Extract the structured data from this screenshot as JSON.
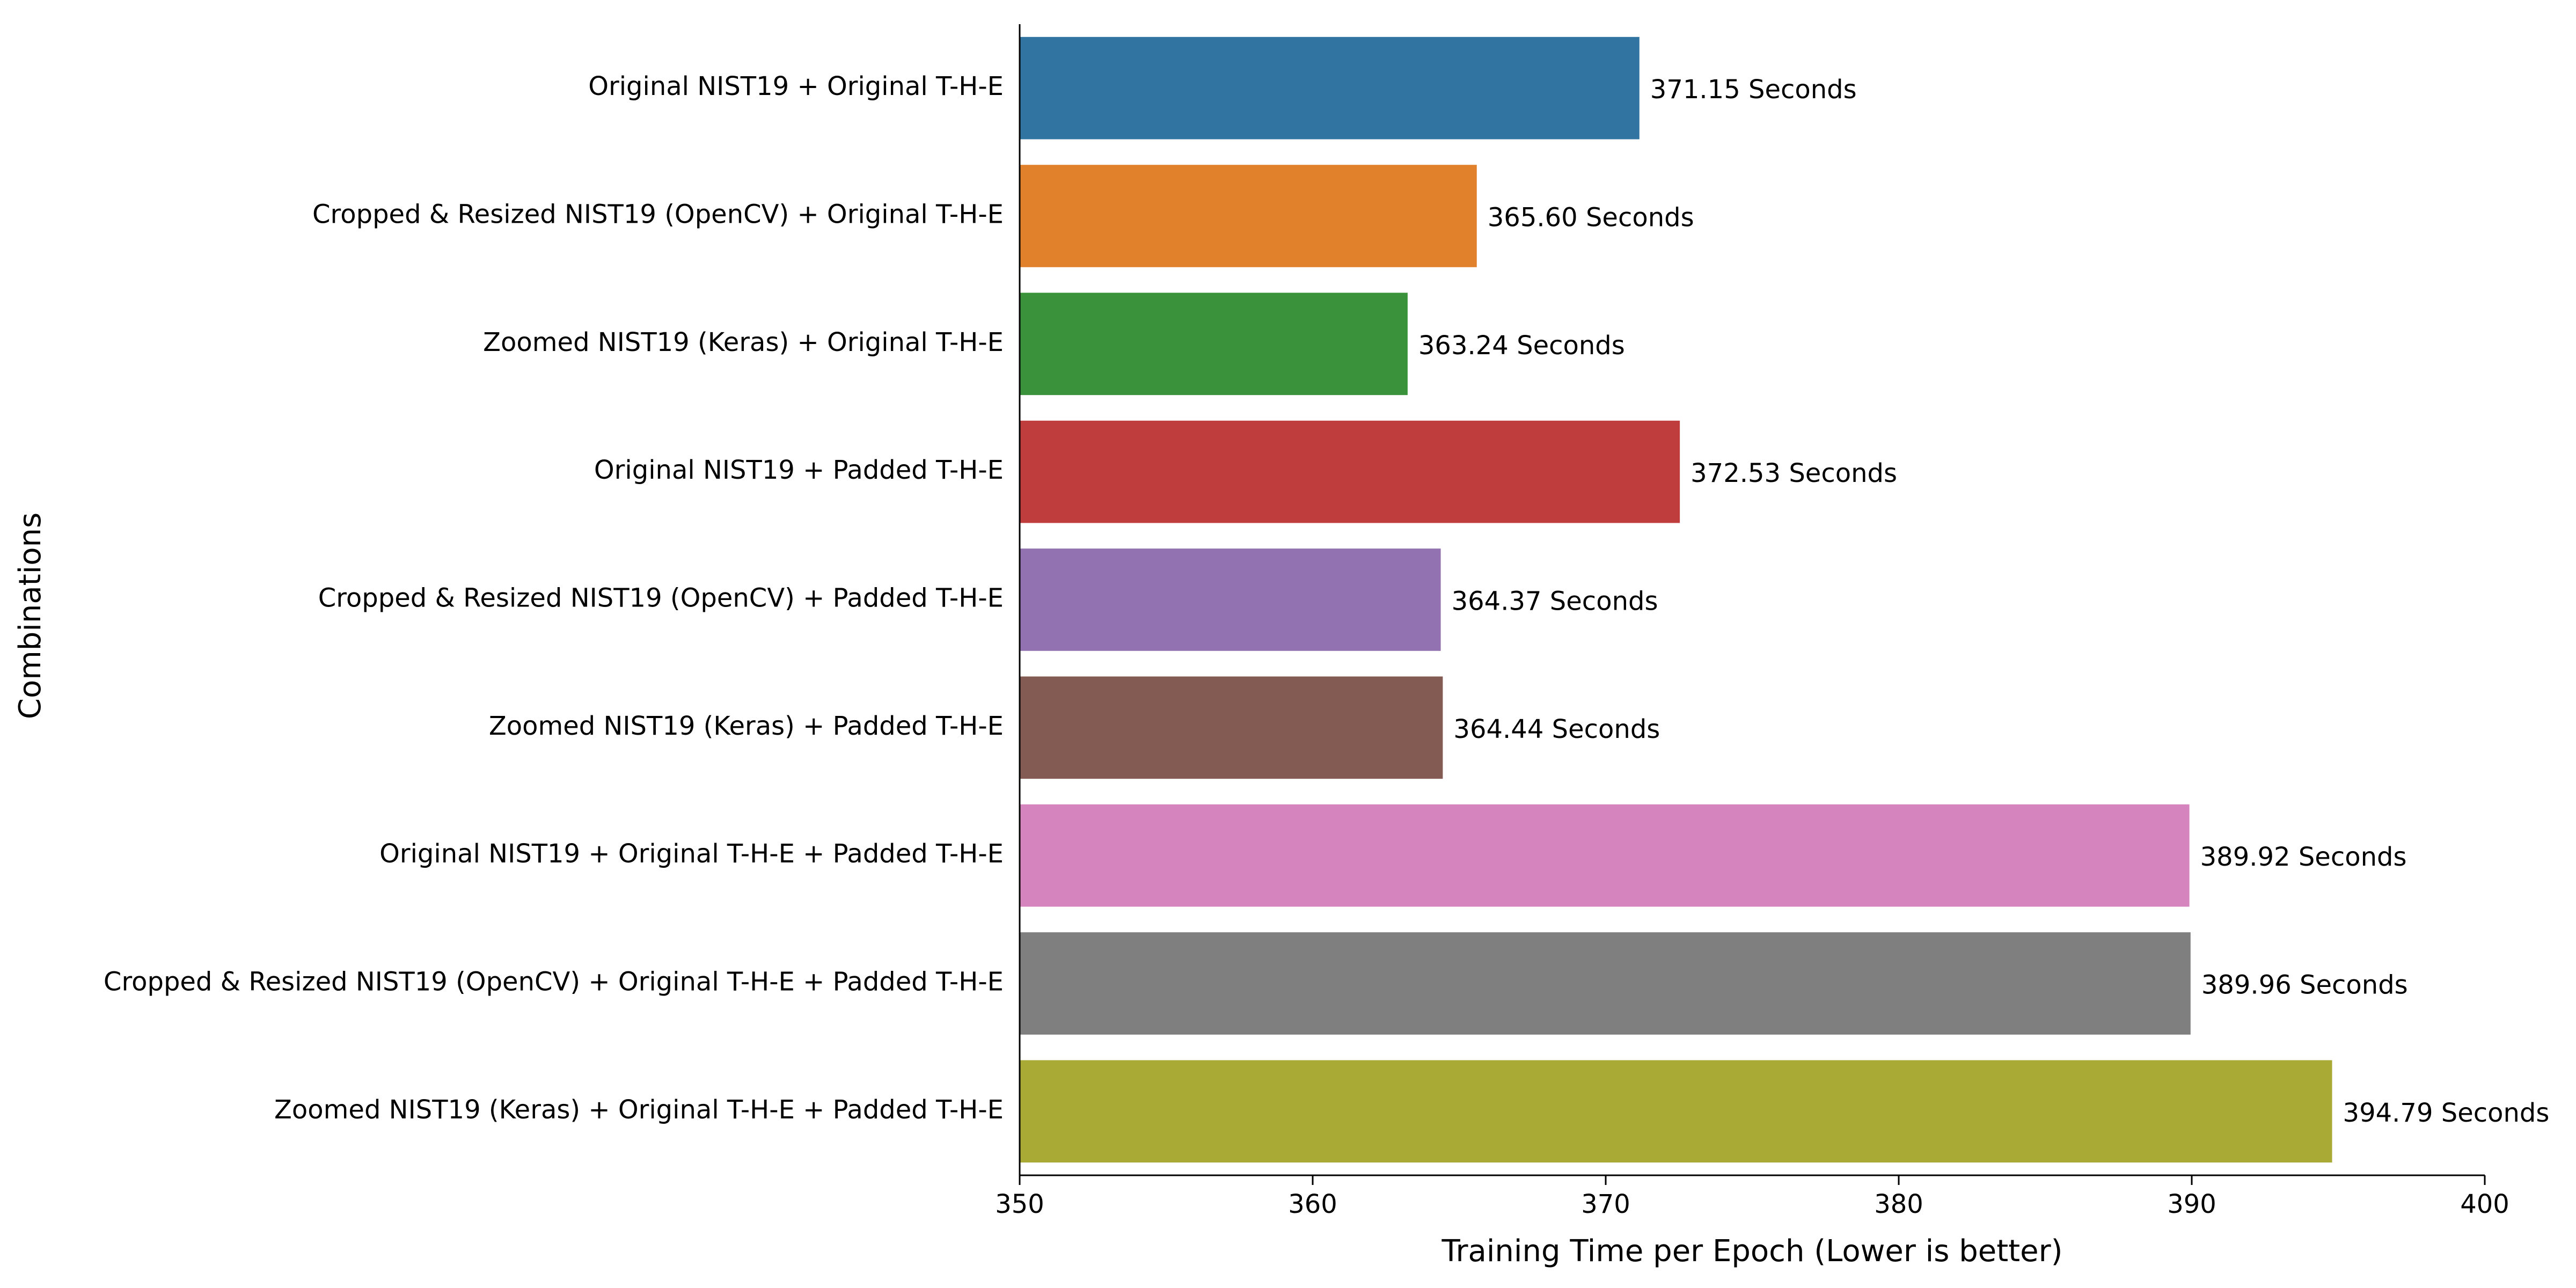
{
  "chart_data": {
    "type": "bar",
    "orientation": "horizontal",
    "title": "",
    "xlabel": "Training Time per Epoch (Lower is better)",
    "ylabel": "Combinations",
    "xlim": [
      350,
      400
    ],
    "xticks": [
      "350",
      "360",
      "370",
      "380",
      "390",
      "400"
    ],
    "grid": false,
    "categories": [
      "Original NIST19 + Original T-H-E",
      "Cropped & Resized NIST19 (OpenCV) + Original T-H-E",
      "Zoomed NIST19 (Keras) + Original T-H-E",
      "Original NIST19 + Padded T-H-E",
      "Cropped & Resized NIST19 (OpenCV) + Padded T-H-E",
      "Zoomed NIST19 (Keras) + Padded T-H-E",
      "Original NIST19 + Original T-H-E + Padded T-H-E",
      "Cropped & Resized NIST19 (OpenCV) + Original T-H-E + Padded T-H-E",
      "Zoomed NIST19 (Keras) + Original T-H-E + Padded T-H-E"
    ],
    "values": [
      371.15,
      365.6,
      363.24,
      372.53,
      364.37,
      364.44,
      389.92,
      389.96,
      394.79
    ],
    "data_labels": [
      "371.15 Seconds",
      "365.60 Seconds",
      "363.24 Seconds",
      "372.53 Seconds",
      "364.37 Seconds",
      "364.44 Seconds",
      "389.92 Seconds",
      "389.96 Seconds",
      "394.79 Seconds"
    ],
    "colors": [
      "#3274a1",
      "#e1812c",
      "#3a923a",
      "#c03d3e",
      "#9372b2",
      "#845b53",
      "#d684bd",
      "#7f7f7f",
      "#a9aa35"
    ]
  }
}
